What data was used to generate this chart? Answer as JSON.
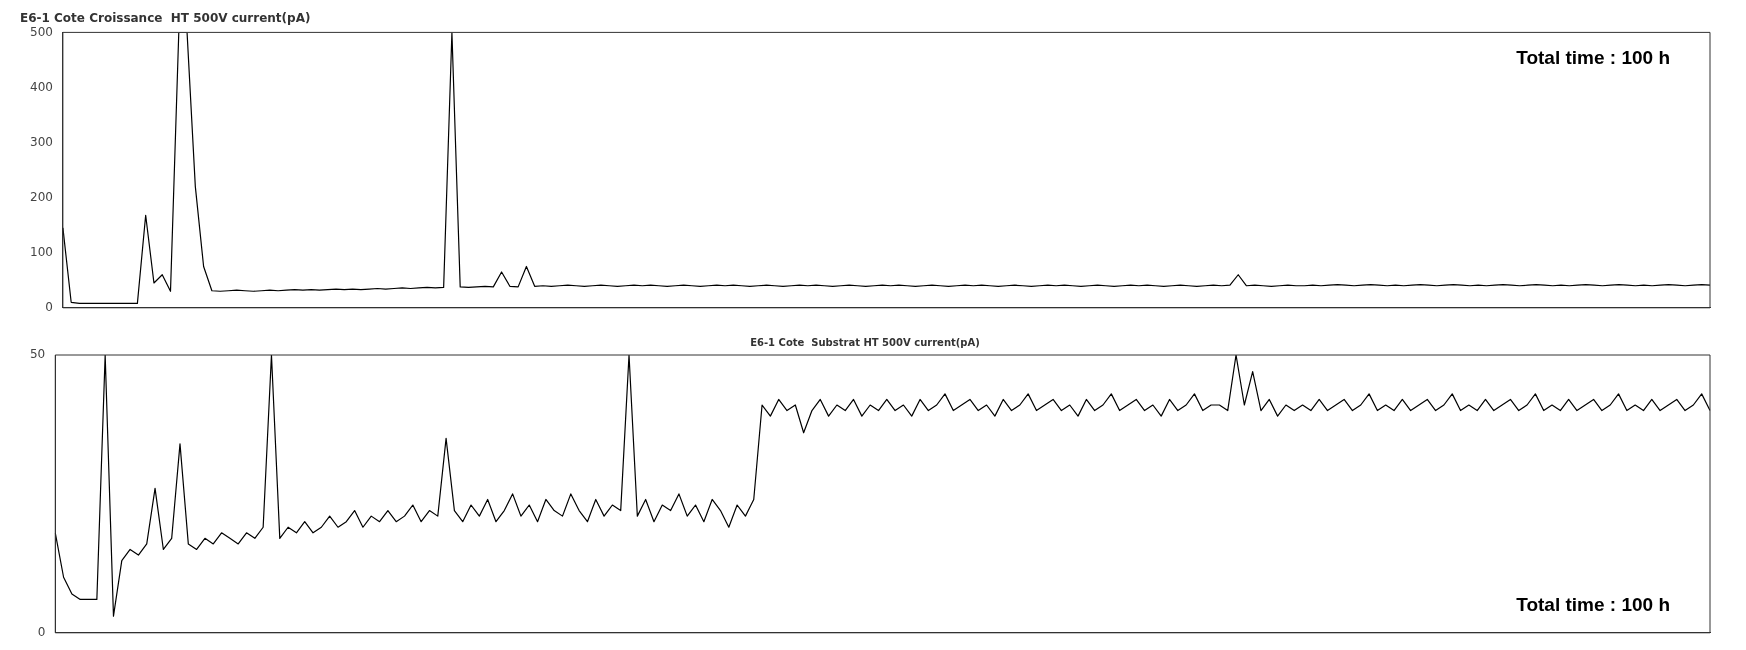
{
  "chart_data": [
    {
      "type": "line",
      "title": "E6-1 Cote Croissance  HT 500V current(pA)",
      "categories": [
        null,
        null,
        null,
        null,
        null,
        null,
        null,
        null,
        null,
        null,
        null,
        null,
        null,
        null,
        null,
        null,
        null,
        null,
        null,
        null,
        null,
        null,
        null,
        null,
        null,
        null,
        null,
        null,
        null,
        null,
        null,
        null,
        null,
        null,
        null,
        null,
        null,
        null,
        null,
        null,
        null,
        null,
        null,
        null,
        null,
        null,
        null,
        null,
        null,
        null,
        null,
        null,
        null,
        null,
        null,
        null,
        null,
        null,
        null,
        null,
        null,
        null,
        null,
        null,
        null,
        null,
        null,
        null,
        null,
        null,
        null,
        null,
        null,
        null,
        null,
        null,
        null,
        null,
        null,
        null,
        null,
        null,
        null,
        null,
        null,
        null,
        null,
        null,
        null,
        null,
        null,
        null,
        null,
        null,
        null,
        null,
        null,
        null,
        null,
        null,
        null,
        null,
        null,
        null,
        null,
        null,
        null,
        null,
        null,
        null,
        null,
        null,
        null,
        null,
        null,
        null,
        null,
        null,
        null,
        null,
        null,
        null,
        null,
        null,
        null,
        null,
        null,
        null,
        null,
        null,
        null,
        null,
        null,
        null,
        null,
        null,
        null,
        null,
        null,
        null,
        null,
        null,
        null,
        null,
        null,
        null,
        null,
        null,
        null,
        null,
        null,
        null,
        null,
        null,
        null,
        null,
        null,
        null,
        null,
        null,
        null,
        null,
        null,
        null,
        null,
        null,
        null,
        null,
        null,
        null,
        null,
        null,
        null,
        null,
        null,
        null,
        null,
        null,
        null,
        null,
        null,
        null,
        null,
        null,
        null,
        null,
        null,
        null,
        null,
        null,
        null,
        null,
        null,
        null,
        null,
        null,
        null,
        null,
        null,
        null
      ],
      "series": [
        {
          "color": "#000000",
          "values": [
            145,
            10,
            8,
            8,
            8,
            8,
            8,
            8,
            8,
            8,
            168,
            45,
            60,
            30,
            500,
            500,
            220,
            75,
            31,
            30,
            31,
            32,
            31,
            30,
            31,
            32,
            31,
            32,
            33,
            32,
            33,
            32,
            33,
            34,
            33,
            34,
            33,
            34,
            35,
            34,
            35,
            36,
            35,
            36,
            37,
            36,
            37,
            500,
            38,
            37,
            38,
            39,
            38,
            65,
            39,
            38,
            75,
            39,
            40,
            39,
            40,
            41,
            40,
            39,
            40,
            41,
            40,
            39,
            40,
            41,
            40,
            41,
            40,
            39,
            40,
            41,
            40,
            39,
            40,
            41,
            40,
            41,
            40,
            39,
            40,
            41,
            40,
            39,
            40,
            41,
            40,
            41,
            40,
            39,
            40,
            41,
            40,
            39,
            40,
            41,
            40,
            41,
            40,
            39,
            40,
            41,
            40,
            39,
            40,
            41,
            40,
            41,
            40,
            39,
            40,
            41,
            40,
            39,
            40,
            41,
            40,
            41,
            40,
            39,
            40,
            41,
            40,
            39,
            40,
            41,
            40,
            41,
            40,
            39,
            40,
            41,
            40,
            39,
            40,
            41,
            40,
            41,
            60,
            40,
            41,
            40,
            39,
            40,
            41,
            40,
            40,
            41,
            40,
            41,
            42,
            41,
            40,
            41,
            42,
            41,
            40,
            41,
            40,
            41,
            42,
            41,
            40,
            41,
            42,
            41,
            40,
            41,
            40,
            41,
            42,
            41,
            40,
            41,
            42,
            41,
            40,
            41,
            40,
            41,
            42,
            41,
            40,
            41,
            42,
            41,
            40,
            41,
            40,
            41,
            42,
            41,
            40,
            41,
            42,
            41
          ]
        }
      ],
      "ylim": [
        0,
        500
      ],
      "yticks": [
        0,
        100,
        200,
        300,
        400,
        500
      ],
      "grid": false,
      "legend": false,
      "tick_labels": "y",
      "annotations": [
        "Total time : 100 h"
      ]
    },
    {
      "type": "line",
      "title": "E6-1 Cote  Substrat HT 500V current(pA)",
      "categories": [
        null,
        null,
        null,
        null,
        null,
        null,
        null,
        null,
        null,
        null,
        null,
        null,
        null,
        null,
        null,
        null,
        null,
        null,
        null,
        null,
        null,
        null,
        null,
        null,
        null,
        null,
        null,
        null,
        null,
        null,
        null,
        null,
        null,
        null,
        null,
        null,
        null,
        null,
        null,
        null,
        null,
        null,
        null,
        null,
        null,
        null,
        null,
        null,
        null,
        null,
        null,
        null,
        null,
        null,
        null,
        null,
        null,
        null,
        null,
        null,
        null,
        null,
        null,
        null,
        null,
        null,
        null,
        null,
        null,
        null,
        null,
        null,
        null,
        null,
        null,
        null,
        null,
        null,
        null,
        null,
        null,
        null,
        null,
        null,
        null,
        null,
        null,
        null,
        null,
        null,
        null,
        null,
        null,
        null,
        null,
        null,
        null,
        null,
        null,
        null,
        null,
        null,
        null,
        null,
        null,
        null,
        null,
        null,
        null,
        null,
        null,
        null,
        null,
        null,
        null,
        null,
        null,
        null,
        null,
        null,
        null,
        null,
        null,
        null,
        null,
        null,
        null,
        null,
        null,
        null,
        null,
        null,
        null,
        null,
        null,
        null,
        null,
        null,
        null,
        null,
        null,
        null,
        null,
        null,
        null,
        null,
        null,
        null,
        null,
        null,
        null,
        null,
        null,
        null,
        null,
        null,
        null,
        null,
        null,
        null,
        null,
        null,
        null,
        null,
        null,
        null,
        null,
        null,
        null,
        null,
        null,
        null,
        null,
        null,
        null,
        null,
        null,
        null,
        null,
        null,
        null,
        null,
        null,
        null,
        null,
        null,
        null,
        null,
        null,
        null,
        null,
        null,
        null,
        null,
        null,
        null,
        null,
        null,
        null,
        null
      ],
      "series": [
        {
          "color": "#000000",
          "values": [
            18,
            10,
            7,
            6,
            6,
            6,
            50,
            3,
            13,
            15,
            14,
            16,
            26,
            15,
            17,
            34,
            16,
            15,
            17,
            16,
            18,
            17,
            16,
            18,
            17,
            19,
            50,
            17,
            19,
            18,
            20,
            18,
            19,
            21,
            19,
            20,
            22,
            19,
            21,
            20,
            22,
            20,
            21,
            23,
            20,
            22,
            21,
            35,
            22,
            20,
            23,
            21,
            24,
            20,
            22,
            25,
            21,
            23,
            20,
            24,
            22,
            21,
            25,
            22,
            20,
            24,
            21,
            23,
            22,
            50,
            21,
            24,
            20,
            23,
            22,
            25,
            21,
            23,
            20,
            24,
            22,
            19,
            23,
            21,
            24,
            41,
            39,
            42,
            40,
            41,
            36,
            40,
            42,
            39,
            41,
            40,
            42,
            39,
            41,
            40,
            42,
            40,
            41,
            39,
            42,
            40,
            41,
            43,
            40,
            41,
            42,
            40,
            41,
            39,
            42,
            40,
            41,
            43,
            40,
            41,
            42,
            40,
            41,
            39,
            42,
            40,
            41,
            43,
            40,
            41,
            42,
            40,
            41,
            39,
            42,
            40,
            41,
            43,
            40,
            41,
            41,
            40,
            50,
            41,
            47,
            40,
            42,
            39,
            41,
            40,
            41,
            40,
            42,
            40,
            41,
            42,
            40,
            41,
            43,
            40,
            41,
            40,
            42,
            40,
            41,
            42,
            40,
            41,
            43,
            40,
            41,
            40,
            42,
            40,
            41,
            42,
            40,
            41,
            43,
            40,
            41,
            40,
            42,
            40,
            41,
            42,
            40,
            41,
            43,
            40,
            41,
            40,
            42,
            40,
            41,
            42,
            40,
            41,
            43,
            40
          ]
        }
      ],
      "ylim": [
        0,
        50
      ],
      "yticks": [
        0,
        50
      ],
      "grid": false,
      "legend": false,
      "tick_labels": "y",
      "annotations": [
        "Total time : 100 h"
      ]
    }
  ]
}
